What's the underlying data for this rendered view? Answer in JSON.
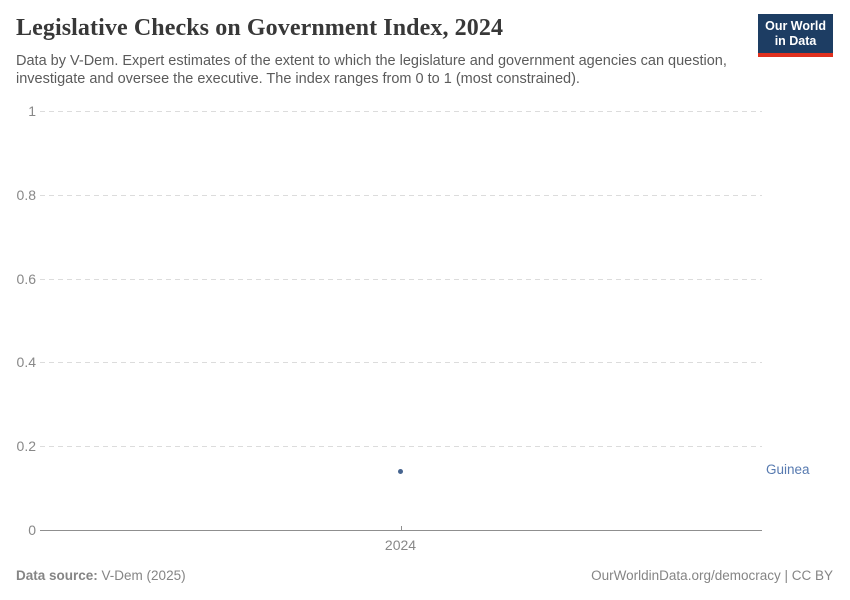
{
  "header": {
    "title": "Legislative Checks on Government Index, 2024",
    "subtitle": "Data by V-Dem. Expert estimates of the extent to which the legislature and government agencies can question, investigate and oversee the executive. The index ranges from 0 to 1 (most constrained).",
    "logo": {
      "line1": "Our World",
      "line2": "in Data",
      "bg_color": "#1d3d63",
      "bar_color": "#e0301e"
    }
  },
  "chart_data": {
    "type": "scatter",
    "title": "Legislative Checks on Government Index, 2024",
    "xlabel": "",
    "ylabel": "",
    "ylim": [
      0,
      1
    ],
    "yticks": [
      0,
      0.2,
      0.4,
      0.6,
      0.8,
      1
    ],
    "ytick_labels": [
      "0",
      "0.2",
      "0.4",
      "0.6",
      "0.8",
      "1"
    ],
    "xticks": [
      2024
    ],
    "xtick_labels": [
      "2024"
    ],
    "grid": "horizontal-dashed",
    "grid_color": "#dcdcdc",
    "axis_color": "#8f8f8f",
    "tick_label_color": "#888888",
    "series": [
      {
        "name": "Guinea",
        "x": 2024,
        "value": 0.14,
        "point_color": "#46648f",
        "label_color": "#577ab0"
      }
    ]
  },
  "footer": {
    "data_source_label": "Data source:",
    "data_source_value": "V-Dem (2025)",
    "credit": "OurWorldinData.org/democracy | CC BY"
  }
}
